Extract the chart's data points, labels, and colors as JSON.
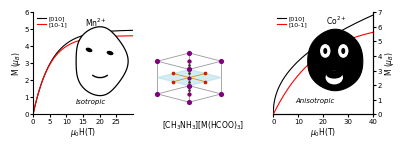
{
  "left_plot": {
    "xlabel": "$\\mu_0$H(T)",
    "ylabel": "M ($\\mu_B$)",
    "xlim": [
      0,
      30
    ],
    "ylim": [
      0,
      6
    ],
    "yticks": [
      0,
      1,
      2,
      3,
      4,
      5,
      6
    ],
    "xticks": [
      0,
      5,
      10,
      15,
      20,
      25
    ],
    "legend_labels": [
      "[010]",
      "[10-1]"
    ],
    "line_colors": [
      "black",
      "red"
    ],
    "annotation": "Isotropic",
    "ion_label": "Mn$^{2+}$",
    "M010_sat": 4.95,
    "M010_scale": 18.0,
    "M101_sat": 4.62,
    "M101_scale": 8.0
  },
  "right_plot": {
    "xlabel": "$\\mu_0$H(T)",
    "ylabel": "M ($\\mu_B$)",
    "xlim": [
      0,
      40
    ],
    "ylim": [
      0,
      7
    ],
    "yticks": [
      0,
      1,
      2,
      3,
      4,
      5,
      6,
      7
    ],
    "xticks": [
      0,
      10,
      20,
      30,
      40
    ],
    "legend_labels": [
      "[010]",
      "[10-1]"
    ],
    "line_colors": [
      "black",
      "red"
    ],
    "annotation": "Anisotropic",
    "ion_label": "Co$^{2+}$",
    "M010_sat": 6.8,
    "M010_scale": 55.0,
    "M101_sat": 6.3,
    "M101_scale": 18.0
  },
  "center_label": "[CH$_3$NH$_3$][M(HCOO)$_3$]",
  "cube_color": "#aaaaaa",
  "plane_color": "#c0e8f0",
  "atom_large_color": "#800080",
  "atom_small_color": "#cc2200",
  "atom_mid_color": "#333333",
  "fig_bg": "white"
}
